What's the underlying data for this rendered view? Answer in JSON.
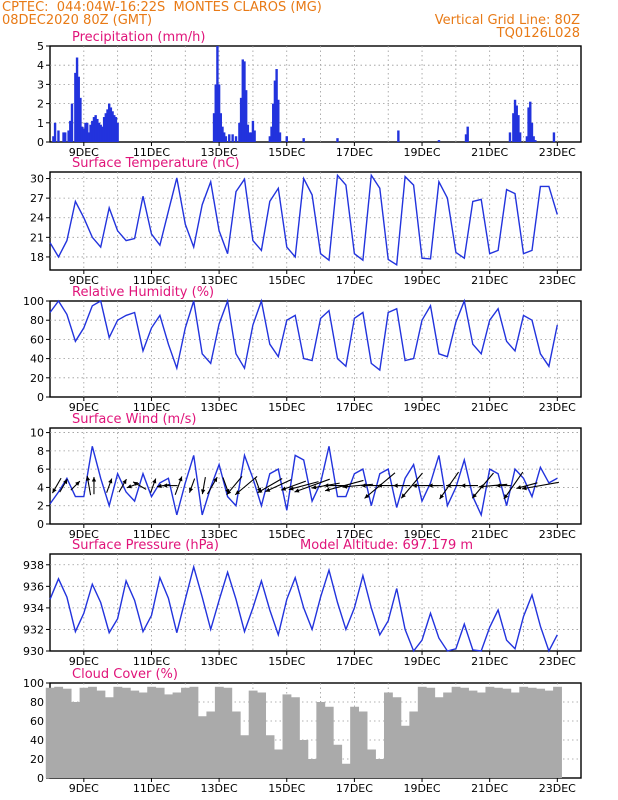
{
  "header": {
    "line1_left": "CPTEC:  044:04W-16:22S  MONTES CLAROS (MG)",
    "line2_left": "08DEC2020 80Z (GMT)",
    "line2_right": "Vertical Grid Line: 80Z",
    "line3_right": "TQ0126L028"
  },
  "colors": {
    "header": "#e87a16",
    "title": "#e0147a",
    "series": "#2233dd",
    "cloud": "#aaaaaa",
    "grid": "#999999"
  },
  "chart_data": [
    {
      "type": "bar",
      "title": "Precipitation (mm/h)",
      "x_tick_labels": [
        "9DEC",
        "11DEC",
        "13DEC",
        "15DEC",
        "17DEC",
        "19DEC",
        "21DEC",
        "23DEC"
      ],
      "ylim": [
        0,
        5
      ],
      "y_ticks": [
        0,
        1,
        2,
        3,
        4,
        5
      ],
      "grid": true,
      "x_days": [
        0.1,
        0.15,
        0.25,
        0.4,
        0.45,
        0.55,
        0.6,
        0.65,
        0.75,
        0.8,
        0.85,
        0.9,
        0.95,
        1.0,
        1.05,
        1.1,
        1.15,
        1.2,
        1.25,
        1.3,
        1.35,
        1.4,
        1.45,
        1.5,
        1.55,
        1.6,
        1.65,
        1.7,
        1.75,
        1.8,
        1.85,
        1.9,
        1.95,
        2.0,
        4.85,
        4.9,
        4.95,
        5.0,
        5.05,
        5.1,
        5.15,
        5.2,
        5.3,
        5.4,
        5.5,
        5.6,
        5.65,
        5.7,
        5.75,
        5.8,
        5.85,
        5.9,
        5.95,
        6.0,
        6.05,
        6.5,
        6.55,
        6.6,
        6.65,
        6.7,
        6.75,
        6.8,
        7.0,
        7.5,
        8.5,
        10.3,
        11.5,
        12.3,
        12.35,
        13.6,
        13.7,
        13.75,
        13.8,
        13.85,
        13.9,
        14.1,
        14.15,
        14.2,
        14.25,
        14.3,
        14.35,
        14.9
      ],
      "values": [
        0.3,
        1.0,
        0.6,
        0.5,
        0.5,
        0.6,
        1.1,
        2.0,
        3.6,
        4.4,
        3.4,
        2.3,
        0.8,
        0.7,
        1.0,
        1.0,
        0.5,
        0.9,
        1.1,
        1.3,
        1.4,
        1.2,
        1.0,
        0.9,
        0.8,
        1.3,
        1.5,
        1.7,
        2.0,
        1.8,
        1.6,
        1.4,
        1.3,
        1.0,
        1.5,
        3.0,
        5.0,
        3.0,
        1.5,
        0.8,
        0.5,
        0.3,
        0.4,
        0.4,
        0.3,
        1.0,
        2.3,
        4.3,
        4.2,
        2.7,
        0.9,
        0.5,
        0.5,
        1.1,
        0.6,
        0.3,
        0.8,
        2.0,
        3.2,
        3.8,
        2.2,
        0.5,
        0.3,
        0.2,
        0.2,
        0.6,
        0.1,
        0.4,
        0.8,
        0.5,
        1.5,
        2.2,
        1.9,
        1.4,
        0.5,
        0.3,
        1.8,
        2.1,
        1.0,
        0.3,
        0.1,
        0.5
      ]
    },
    {
      "type": "line",
      "title": "Surface Temperature (nC)",
      "x_tick_labels": [
        "9DEC",
        "11DEC",
        "13DEC",
        "15DEC",
        "17DEC",
        "19DEC",
        "21DEC",
        "23DEC"
      ],
      "ylim": [
        16,
        31
      ],
      "y_ticks": [
        18,
        21,
        24,
        27,
        30
      ],
      "grid": true,
      "x_days": [
        0.0,
        0.25,
        0.5,
        0.75,
        1.0,
        1.25,
        1.5,
        1.75,
        2.0,
        2.25,
        2.5,
        2.75,
        3.0,
        3.25,
        3.5,
        3.75,
        4.0,
        4.25,
        4.5,
        4.75,
        5.0,
        5.25,
        5.5,
        5.75,
        6.0,
        6.25,
        6.5,
        6.75,
        7.0,
        7.25,
        7.5,
        7.75,
        8.0,
        8.25,
        8.5,
        8.75,
        9.0,
        9.25,
        9.5,
        9.75,
        10.0,
        10.25,
        10.5,
        10.75,
        11.0,
        11.25,
        11.5,
        11.75,
        12.0,
        12.25,
        12.5,
        12.75,
        13.0,
        13.25,
        13.5,
        13.75,
        14.0,
        14.25,
        14.5,
        14.75,
        15.0
      ],
      "series": [
        {
          "values": [
            20.2,
            18.0,
            20.5,
            26.5,
            24.0,
            21.0,
            19.5,
            25.5,
            22.0,
            20.5,
            20.8,
            27.3,
            21.5,
            19.8,
            25.0,
            30.1,
            23.0,
            19.5,
            26.0,
            29.5,
            22.0,
            18.5,
            28.0,
            29.9,
            20.5,
            19.0,
            26.5,
            28.5,
            19.5,
            18.0,
            30.0,
            27.5,
            18.5,
            17.5,
            30.5,
            29.0,
            18.5,
            17.5,
            30.5,
            28.5,
            17.6,
            16.8,
            30.3,
            29.0,
            17.8,
            17.7,
            29.5,
            27.0,
            18.7,
            17.8,
            26.5,
            26.8,
            18.5,
            19.0,
            28.3,
            27.7,
            18.5,
            19.0,
            28.8,
            28.8,
            24.5
          ]
        }
      ]
    },
    {
      "type": "line",
      "title": "Relative Humidity (%)",
      "x_tick_labels": [
        "9DEC",
        "11DEC",
        "13DEC",
        "15DEC",
        "17DEC",
        "19DEC",
        "21DEC",
        "23DEC"
      ],
      "ylim": [
        0,
        100
      ],
      "y_ticks": [
        0,
        20,
        40,
        60,
        80,
        100
      ],
      "grid": true,
      "x_days": [
        0.0,
        0.25,
        0.5,
        0.75,
        1.0,
        1.25,
        1.5,
        1.75,
        2.0,
        2.25,
        2.5,
        2.75,
        3.0,
        3.25,
        3.5,
        3.75,
        4.0,
        4.25,
        4.5,
        4.75,
        5.0,
        5.25,
        5.5,
        5.75,
        6.0,
        6.25,
        6.5,
        6.75,
        7.0,
        7.25,
        7.5,
        7.75,
        8.0,
        8.25,
        8.5,
        8.75,
        9.0,
        9.25,
        9.5,
        9.75,
        10.0,
        10.25,
        10.5,
        10.75,
        11.0,
        11.25,
        11.5,
        11.75,
        12.0,
        12.25,
        12.5,
        12.75,
        13.0,
        13.25,
        13.5,
        13.75,
        14.0,
        14.25,
        14.5,
        14.75,
        15.0
      ],
      "series": [
        {
          "values": [
            88.0,
            100.0,
            86.0,
            58.0,
            72.0,
            95.0,
            100.0,
            62.0,
            80.0,
            85.0,
            88.0,
            48.0,
            72.0,
            85.0,
            55.0,
            30.0,
            72.0,
            100.0,
            45.0,
            35.0,
            76.0,
            100.0,
            45.0,
            30.0,
            75.0,
            100.0,
            55.0,
            42.0,
            80.0,
            85.0,
            40.0,
            38.0,
            82.0,
            90.0,
            40.0,
            32.0,
            82.0,
            88.0,
            35.0,
            28.0,
            88.0,
            92.0,
            38.0,
            40.0,
            80.0,
            95.0,
            45.0,
            42.0,
            78.0,
            100.0,
            55.0,
            45.0,
            80.0,
            92.0,
            58.0,
            48.0,
            85.0,
            80.0,
            45.0,
            32.0,
            75.0
          ]
        }
      ]
    },
    {
      "type": "line",
      "title": "Surface Wind (m/s)",
      "x_tick_labels": [
        "9DEC",
        "11DEC",
        "13DEC",
        "15DEC",
        "17DEC",
        "19DEC",
        "21DEC",
        "23DEC"
      ],
      "ylim": [
        0,
        10.5
      ],
      "y_ticks": [
        0,
        2,
        4,
        6,
        8,
        10
      ],
      "grid": true,
      "x_days": [
        0.0,
        0.25,
        0.5,
        0.75,
        1.0,
        1.25,
        1.5,
        1.75,
        2.0,
        2.25,
        2.5,
        2.75,
        3.0,
        3.25,
        3.5,
        3.75,
        4.0,
        4.25,
        4.5,
        4.75,
        5.0,
        5.25,
        5.5,
        5.75,
        6.0,
        6.25,
        6.5,
        6.75,
        7.0,
        7.25,
        7.5,
        7.75,
        8.0,
        8.25,
        8.5,
        8.75,
        9.0,
        9.25,
        9.5,
        9.75,
        10.0,
        10.25,
        10.5,
        10.75,
        11.0,
        11.25,
        11.5,
        11.75,
        12.0,
        12.25,
        12.5,
        12.75,
        13.0,
        13.25,
        13.5,
        13.75,
        14.0,
        14.25,
        14.5,
        14.75,
        15.0
      ],
      "series": [
        {
          "values": [
            2.2,
            3.5,
            5.0,
            3.0,
            3.0,
            8.5,
            5.0,
            2.0,
            5.5,
            3.5,
            2.5,
            5.5,
            3.0,
            4.5,
            5.0,
            1.0,
            4.5,
            7.5,
            1.0,
            4.0,
            6.5,
            3.0,
            2.0,
            7.5,
            5.0,
            2.0,
            5.5,
            6.0,
            1.5,
            7.5,
            7.0,
            2.5,
            4.5,
            8.5,
            3.0,
            3.0,
            5.5,
            6.0,
            2.0,
            5.5,
            6.0,
            1.8,
            5.0,
            6.5,
            2.5,
            4.5,
            7.5,
            2.0,
            4.0,
            7.0,
            3.0,
            1.0,
            6.0,
            5.5,
            2.0,
            6.0,
            5.0,
            3.0,
            6.2,
            4.5,
            5.0
          ]
        }
      ],
      "wind_arrows": {
        "x_days": [
          0.2,
          0.4,
          0.75,
          1.15,
          1.3,
          1.75,
          2.15,
          2.45,
          2.65,
          3.05,
          3.35,
          3.55,
          3.8,
          4.2,
          4.55,
          4.8,
          5.2,
          5.45,
          5.8,
          6.15,
          6.5,
          6.75,
          7.2,
          7.5,
          7.75,
          8.15,
          8.45,
          8.7,
          9.1,
          9.45,
          9.75,
          10.1,
          10.4,
          10.7,
          11.1,
          11.4,
          11.8,
          12.1,
          12.4,
          12.8,
          13.1,
          13.4,
          13.7,
          14.1,
          14.5
        ],
        "speed": [
          2.5,
          2.0,
          1.5,
          3.0,
          2.5,
          2.0,
          2.0,
          1.5,
          2.0,
          2.0,
          1.5,
          2.0,
          3.0,
          2.0,
          2.5,
          3.0,
          2.5,
          4.0,
          5.0,
          2.0,
          5.0,
          5.0,
          4.5,
          5.5,
          7.0,
          5.0,
          4.0,
          7.5,
          5.5,
          2.5,
          7.5,
          5.0,
          2.5,
          6.0,
          4.5,
          2.0,
          6.0,
          4.5,
          2.5,
          6.0,
          5.0,
          2.0,
          6.0,
          3.5,
          7.0
        ],
        "dir_deg": [
          210.0,
          30.0,
          45.0,
          350.0,
          0.0,
          20.0,
          30.0,
          250.0,
          300.0,
          20.0,
          260.0,
          270.0,
          20.0,
          200.0,
          190.0,
          30.0,
          160.0,
          220.0,
          230.0,
          160.0,
          240.0,
          245.0,
          250.0,
          255.0,
          250.0,
          260.0,
          270.0,
          255.0,
          265.0,
          270.0,
          230.0,
          270.0,
          270.0,
          220.0,
          270.0,
          270.0,
          215.0,
          270.0,
          270.0,
          220.0,
          265.0,
          270.0,
          215.0,
          255.0,
          260.0
        ]
      }
    },
    {
      "type": "line",
      "title": "Surface Pressure (hPa)",
      "annotation": "Model Altitude: 697.179 m",
      "x_tick_labels": [
        "9DEC",
        "11DEC",
        "13DEC",
        "15DEC",
        "17DEC",
        "19DEC",
        "21DEC",
        "23DEC"
      ],
      "ylim": [
        930,
        939
      ],
      "y_ticks": [
        930,
        932,
        934,
        936,
        938
      ],
      "grid": true,
      "x_days": [
        0.0,
        0.25,
        0.5,
        0.75,
        1.0,
        1.25,
        1.5,
        1.75,
        2.0,
        2.25,
        2.5,
        2.75,
        3.0,
        3.25,
        3.5,
        3.75,
        4.0,
        4.25,
        4.5,
        4.75,
        5.0,
        5.25,
        5.5,
        5.75,
        6.0,
        6.25,
        6.5,
        6.75,
        7.0,
        7.25,
        7.5,
        7.75,
        8.0,
        8.25,
        8.5,
        8.75,
        9.0,
        9.25,
        9.5,
        9.75,
        10.0,
        10.25,
        10.5,
        10.75,
        11.0,
        11.25,
        11.5,
        11.75,
        12.0,
        12.25,
        12.5,
        12.75,
        13.0,
        13.25,
        13.5,
        13.75,
        14.0,
        14.25,
        14.5,
        14.75,
        15.0
      ],
      "series": [
        {
          "values": [
            934.8,
            936.7,
            935.0,
            931.8,
            933.5,
            936.2,
            934.5,
            931.7,
            933.0,
            936.5,
            934.7,
            931.8,
            933.3,
            936.8,
            934.9,
            931.7,
            934.8,
            937.8,
            935.0,
            932.0,
            934.7,
            937.3,
            934.8,
            931.8,
            934.0,
            936.5,
            933.8,
            931.5,
            934.8,
            936.8,
            934.0,
            932.0,
            935.0,
            937.5,
            934.5,
            932.0,
            934.0,
            937.0,
            934.0,
            931.5,
            932.8,
            935.8,
            932.0,
            930.0,
            931.0,
            933.5,
            931.2,
            930.0,
            930.2,
            932.5,
            930.1,
            930.0,
            932.2,
            933.8,
            931.0,
            930.2,
            933.2,
            935.2,
            932.3,
            930.0,
            931.5
          ]
        }
      ]
    },
    {
      "type": "bar",
      "title": "Cloud Cover (%)",
      "x_tick_labels": [
        "9DEC",
        "11DEC",
        "13DEC",
        "15DEC",
        "17DEC",
        "19DEC",
        "21DEC",
        "23DEC"
      ],
      "ylim": [
        0,
        100
      ],
      "y_ticks": [
        0,
        20,
        40,
        60,
        80,
        100
      ],
      "grid": true,
      "x_days": [
        0.0,
        0.25,
        0.5,
        0.75,
        1.0,
        1.25,
        1.5,
        1.75,
        2.0,
        2.25,
        2.5,
        2.75,
        3.0,
        3.25,
        3.5,
        3.75,
        4.0,
        4.25,
        4.5,
        4.75,
        5.0,
        5.25,
        5.5,
        5.75,
        6.0,
        6.25,
        6.5,
        6.75,
        7.0,
        7.25,
        7.5,
        7.75,
        8.0,
        8.25,
        8.5,
        8.75,
        9.0,
        9.25,
        9.5,
        9.75,
        10.0,
        10.25,
        10.5,
        10.75,
        11.0,
        11.25,
        11.5,
        11.75,
        12.0,
        12.25,
        12.5,
        12.75,
        13.0,
        13.25,
        13.5,
        13.75,
        14.0,
        14.25,
        14.5,
        14.75,
        15.0
      ],
      "values": [
        95,
        96,
        94,
        80,
        95,
        96,
        92,
        85,
        96,
        95,
        92,
        90,
        96,
        95,
        88,
        90,
        95,
        96,
        65,
        70,
        96,
        95,
        70,
        45,
        92,
        90,
        45,
        30,
        88,
        85,
        40,
        20,
        80,
        75,
        35,
        15,
        75,
        70,
        30,
        20,
        90,
        85,
        55,
        70,
        96,
        95,
        85,
        90,
        96,
        95,
        92,
        90,
        96,
        95,
        94,
        90,
        96,
        95,
        94,
        92,
        96
      ]
    }
  ]
}
